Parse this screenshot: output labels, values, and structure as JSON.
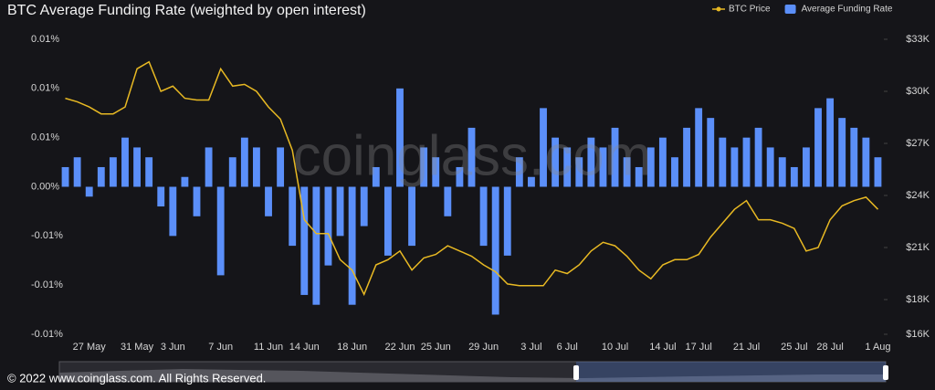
{
  "chart_data": {
    "type": "bar",
    "title": "BTC Average Funding Rate  (weighted by open interest)",
    "watermark": "coinglass.com",
    "footer": "© 2022 www.coinglass.com. All Rights Reserved.",
    "categories": [
      null,
      null,
      "27 May",
      null,
      null,
      null,
      "31 May",
      null,
      null,
      "3 Jun",
      null,
      null,
      null,
      "7 Jun",
      null,
      null,
      null,
      "11 Jun",
      null,
      null,
      "14 Jun",
      null,
      null,
      null,
      "18 Jun",
      null,
      null,
      null,
      "22 Jun",
      null,
      null,
      "25 Jun",
      null,
      null,
      null,
      "29 Jun",
      null,
      null,
      null,
      "3 Jul",
      null,
      null,
      "6 Jul",
      null,
      null,
      null,
      "10 Jul",
      null,
      null,
      null,
      "14 Jul",
      null,
      null,
      "17 Jul",
      null,
      null,
      null,
      "21 Jul",
      null,
      null,
      null,
      "25 Jul",
      null,
      null,
      "28 Jul",
      null,
      null,
      null,
      "1 Aug"
    ],
    "series": [
      {
        "name": "BTC Price",
        "type": "line",
        "axis": "y2",
        "color": "#e8b923",
        "values": [
          29600,
          29400,
          29100,
          28700,
          28700,
          29100,
          31300,
          31700,
          30000,
          30300,
          29600,
          29500,
          29500,
          31300,
          30300,
          30400,
          30000,
          29100,
          28400,
          26600,
          22600,
          21800,
          21800,
          20300,
          19700,
          18300,
          20000,
          20300,
          20800,
          19700,
          20400,
          20600,
          21100,
          20800,
          20500,
          20000,
          19600,
          18900,
          18800,
          18800,
          18800,
          19700,
          19500,
          20000,
          20800,
          21300,
          21100,
          20500,
          19700,
          19200,
          20000,
          20300,
          20300,
          20600,
          21600,
          22400,
          23200,
          23700,
          22600,
          22600,
          22400,
          22100,
          20800,
          21000,
          22600,
          23400,
          23700,
          23900,
          23200
        ]
      },
      {
        "name": "Average Funding Rate",
        "type": "bar",
        "color": "#5b8ff9",
        "values": [
          0.002,
          0.003,
          -0.001,
          0.002,
          0.003,
          0.005,
          0.004,
          0.003,
          -0.002,
          -0.005,
          0.001,
          -0.003,
          0.004,
          -0.009,
          0.003,
          0.005,
          0.004,
          -0.003,
          0.004,
          -0.006,
          -0.011,
          -0.012,
          -0.008,
          -0.005,
          -0.012,
          -0.004,
          0.002,
          -0.007,
          0.01,
          -0.006,
          0.004,
          0.003,
          -0.003,
          0.002,
          0.006,
          -0.006,
          -0.013,
          -0.007,
          0.003,
          0.001,
          0.008,
          0.005,
          0.004,
          0.003,
          0.005,
          0.004,
          0.006,
          0.003,
          0.002,
          0.004,
          0.005,
          0.003,
          0.006,
          0.008,
          0.007,
          0.005,
          0.004,
          0.005,
          0.006,
          0.004,
          0.003,
          0.002,
          0.004,
          0.008,
          0.009,
          0.007,
          0.006,
          0.005,
          0.003
        ]
      }
    ],
    "ylim": [
      -0.015,
      0.015
    ],
    "yticks": [
      {
        "value": -0.015,
        "label": "-0.01%"
      },
      {
        "value": -0.01,
        "label": "-0.01%"
      },
      {
        "value": -0.005,
        "label": "-0.01%"
      },
      {
        "value": 0,
        "label": "0.00%"
      },
      {
        "value": 0.005,
        "label": "0.01%"
      },
      {
        "value": 0.01,
        "label": "0.01%"
      },
      {
        "value": 0.015,
        "label": "0.01%"
      }
    ],
    "y2lim": [
      16000,
      33000
    ],
    "y2ticks": [
      {
        "value": 16000,
        "label": "$16K"
      },
      {
        "value": 18000,
        "label": "$18K"
      },
      {
        "value": 21000,
        "label": "$21K"
      },
      {
        "value": 24000,
        "label": "$24K"
      },
      {
        "value": 27000,
        "label": "$27K"
      },
      {
        "value": 30000,
        "label": "$30K"
      },
      {
        "value": 33000,
        "label": "$33K"
      }
    ],
    "legend": "top-right"
  }
}
